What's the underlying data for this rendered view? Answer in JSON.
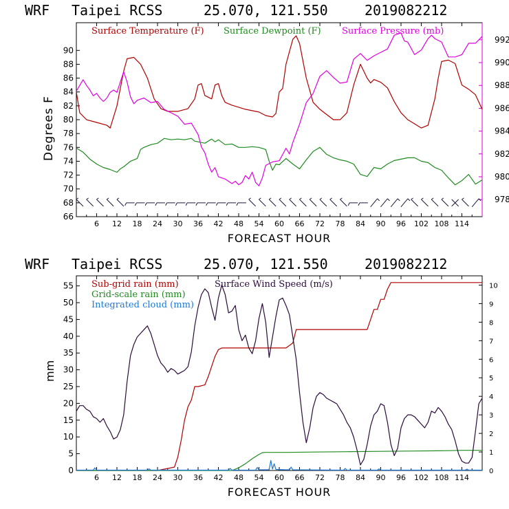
{
  "chart_data": [
    {
      "type": "line",
      "header": {
        "model": "WRF",
        "station": "Taipei RCSS",
        "coords": "25.070, 121.550",
        "init": "2019082212"
      },
      "xlabel": "FORECAST HOUR",
      "ylabel": "Degrees F",
      "xlim": [
        0,
        120
      ],
      "xticks": [
        "6",
        "12",
        "18",
        "24",
        "30",
        "36",
        "42",
        "48",
        "54",
        "60",
        "66",
        "72",
        "78",
        "84",
        "90",
        "96",
        "102",
        "108",
        "114"
      ],
      "ylim": [
        66,
        94
      ],
      "yticks": [
        "66",
        "68",
        "70",
        "72",
        "74",
        "76",
        "78",
        "80",
        "82",
        "84",
        "86",
        "88",
        "90"
      ],
      "y2lim": [
        976.5,
        993.5
      ],
      "y2ticks": [
        "978",
        "980",
        "982",
        "984",
        "986",
        "988",
        "990",
        "992"
      ],
      "legend": [
        "Surface Temperature (F)",
        "Surface Dewpoint (F)",
        "Surface Pressure (mb)"
      ],
      "colors": {
        "temperature": "#b00000",
        "dewpoint": "#1e8a1e",
        "pressure": "#e000e0",
        "wind_barbs": "#1a1a3a",
        "axis": "#d000d0"
      },
      "series": [
        {
          "name": "Surface Temperature (F)",
          "axis": "left",
          "x": [
            0,
            1,
            3,
            6,
            9,
            10,
            12,
            14,
            15,
            17,
            19,
            21,
            23,
            25,
            27,
            30,
            33,
            35,
            36,
            37,
            38,
            40,
            41,
            42,
            43,
            44,
            46,
            48,
            50,
            54,
            56,
            58,
            59,
            60,
            61,
            62,
            64,
            65,
            66,
            68,
            70,
            72,
            76,
            78,
            80,
            82,
            84,
            86,
            87,
            88,
            90,
            92,
            94,
            96,
            98,
            100,
            102,
            104,
            106,
            107,
            108,
            110,
            112,
            114,
            116,
            118,
            120
          ],
          "y": [
            84,
            81,
            80,
            79.6,
            79.2,
            78.8,
            82,
            87,
            88.8,
            89,
            88,
            86,
            83,
            81.6,
            81.2,
            81.2,
            81.6,
            83,
            85,
            85.2,
            83.5,
            83,
            85,
            85.2,
            83.5,
            82.5,
            82.1,
            81.8,
            81.5,
            81.1,
            80.6,
            80.4,
            80.9,
            84,
            84.5,
            88,
            91.6,
            92.1,
            91,
            86,
            82.5,
            81.5,
            80,
            80,
            81,
            85,
            88,
            86,
            85.3,
            85.8,
            85.4,
            84.6,
            82.6,
            81,
            80,
            79.4,
            78.8,
            79.2,
            83,
            86,
            88.4,
            88.6,
            88.1,
            85,
            84.4,
            83.6,
            81.5
          ]
        },
        {
          "name": "Surface Dewpoint (F)",
          "axis": "left",
          "x": [
            0,
            2,
            4,
            6,
            8,
            10,
            12,
            13,
            14,
            16,
            18,
            19,
            20,
            22,
            24,
            26,
            28,
            30,
            32,
            34,
            35,
            36,
            38,
            40,
            41,
            42,
            44,
            46,
            48,
            50,
            52,
            54,
            56,
            57,
            58,
            59,
            60,
            62,
            64,
            66,
            68,
            70,
            72,
            74,
            76,
            78,
            80,
            82,
            84,
            86,
            88,
            90,
            92,
            94,
            96,
            98,
            100,
            102,
            104,
            106,
            108,
            110,
            112,
            114,
            116,
            118,
            120
          ],
          "y": [
            75.9,
            75.3,
            74.3,
            73.6,
            73.1,
            72.8,
            72.4,
            72.9,
            73.2,
            74,
            74.4,
            75.7,
            76,
            76.4,
            76.6,
            77.3,
            77.1,
            77.2,
            77.1,
            77.3,
            76.9,
            76.8,
            76.6,
            77.2,
            76.8,
            77.1,
            76.4,
            76.5,
            76,
            76,
            76.1,
            76,
            75.7,
            74,
            72.7,
            73.6,
            73.5,
            74.4,
            73.6,
            72.9,
            74.2,
            75.4,
            76,
            75,
            74.5,
            74.2,
            74,
            73.6,
            72.1,
            71.8,
            73.1,
            72.9,
            73.6,
            74.1,
            74.3,
            74.5,
            74.5,
            74,
            73.8,
            73.1,
            72.7,
            71.6,
            70.6,
            71.2,
            72.1,
            70.7,
            71.3
          ]
        },
        {
          "name": "Surface Pressure (mb)",
          "axis": "right",
          "x": [
            0,
            1,
            2,
            3,
            4,
            5,
            6,
            7,
            8,
            9,
            10,
            11,
            12,
            13,
            14,
            15,
            16,
            17,
            18,
            20,
            22,
            24,
            26,
            28,
            30,
            32,
            34,
            36,
            37,
            38,
            39,
            40,
            41,
            42,
            44,
            46,
            47,
            48,
            49,
            50,
            51,
            52,
            53,
            54,
            55,
            56,
            58,
            60,
            62,
            63,
            64,
            66,
            68,
            70,
            72,
            74,
            76,
            78,
            80,
            82,
            84,
            86,
            88,
            90,
            92,
            94,
            96,
            97,
            98,
            100,
            102,
            104,
            105,
            106,
            108,
            110,
            112,
            114,
            116,
            118,
            120
          ],
          "y": [
            987.5,
            988,
            988.5,
            988,
            987.6,
            987.1,
            987.3,
            986.9,
            986.6,
            986.9,
            987.4,
            987.6,
            987.4,
            988.3,
            989.2,
            988.3,
            987,
            986.4,
            986.7,
            986.9,
            986.5,
            986.6,
            985.9,
            985.6,
            985.3,
            984.6,
            984.7,
            983.7,
            982.6,
            982.1,
            981.1,
            980.4,
            980.8,
            980,
            979.8,
            979.4,
            979.6,
            979.3,
            979.5,
            980.1,
            979.8,
            980.4,
            979.5,
            979.2,
            979.9,
            981,
            981.3,
            981.4,
            982.5,
            982,
            983,
            984.6,
            986.5,
            987.3,
            988.8,
            989.3,
            988.7,
            988.2,
            988.3,
            990.3,
            990.8,
            990.2,
            990.6,
            990.9,
            991.2,
            992.4,
            992.6,
            991.9,
            991.8,
            990.7,
            991.1,
            992.1,
            992.4,
            992.1,
            991.8,
            990.5,
            990.5,
            990.7,
            991.7,
            991.7,
            992.3
          ]
        }
      ],
      "wind_barbs": {
        "x": [
          1,
          4,
          7,
          10,
          13,
          16,
          19,
          22,
          25,
          28,
          31,
          34,
          37,
          40,
          43,
          46,
          49,
          52,
          55,
          58,
          61,
          64,
          67,
          70,
          73,
          76,
          79,
          82,
          85,
          88,
          91,
          94,
          97,
          100,
          103,
          106,
          109,
          112,
          115,
          118
        ],
        "orientation": [
          "s",
          "s",
          "s",
          "s",
          "s",
          "h",
          "h",
          "h",
          "h",
          "h",
          "h",
          "h",
          "h",
          "h",
          "h",
          "h",
          "h",
          "s",
          "s",
          "s",
          "s",
          "s",
          "s",
          "s",
          "s",
          "s",
          "s",
          "h",
          "h",
          "n",
          "n",
          "n",
          "n",
          "s",
          "s",
          "s",
          "s",
          "x",
          "s",
          "n"
        ]
      }
    },
    {
      "type": "line",
      "header": {
        "model": "WRF",
        "station": "Taipei RCSS",
        "coords": "25.070, 121.550",
        "init": "2019082212"
      },
      "xlabel": "FORECAST HOUR",
      "ylabel": "mm",
      "xlim": [
        0,
        120
      ],
      "xticks": [
        "6",
        "12",
        "18",
        "24",
        "30",
        "36",
        "42",
        "48",
        "54",
        "60",
        "66",
        "72",
        "78",
        "84",
        "90",
        "96",
        "102",
        "108",
        "114"
      ],
      "ylim": [
        0,
        58
      ],
      "yticks": [
        "0",
        "5",
        "10",
        "15",
        "20",
        "25",
        "30",
        "35",
        "40",
        "45",
        "50",
        "55"
      ],
      "y2lim": [
        0,
        10.5
      ],
      "y2ticks": [
        "0",
        "1",
        "2",
        "3",
        "4",
        "5",
        "6",
        "7",
        "8",
        "9",
        "10"
      ],
      "legend": [
        "Sub-grid rain (mm)",
        "Grid-scale rain (mm)",
        "Integrated cloud (mm)",
        "Surface Wind Speed (m/s)"
      ],
      "colors": {
        "subgrid": "#b00000",
        "gridscale": "#1e8a1e",
        "cloud": "#1e78d8",
        "wind": "#2a0a3a"
      },
      "series": [
        {
          "name": "Sub-grid rain (mm)",
          "axis": "left",
          "x": [
            0,
            24,
            29,
            30,
            31,
            32,
            33,
            34,
            35,
            36,
            38,
            39,
            40,
            41,
            42,
            43,
            62,
            64,
            65,
            66,
            86,
            87,
            88,
            89,
            90,
            91,
            92,
            93,
            120
          ],
          "y": [
            0,
            0,
            1,
            4,
            9,
            15,
            19,
            21,
            25,
            25,
            25.5,
            28,
            31,
            34,
            36,
            36.5,
            36.5,
            38,
            42,
            42,
            42,
            45,
            48,
            48,
            51,
            51,
            54,
            56,
            56
          ]
        },
        {
          "name": "Grid-scale rain (mm)",
          "axis": "left",
          "x": [
            0,
            46,
            48,
            50,
            52,
            54,
            55,
            56,
            58,
            62,
            70,
            80,
            90,
            100,
            110,
            114,
            120
          ],
          "y": [
            0,
            0,
            0.8,
            2,
            3.5,
            4.8,
            5.3,
            5.4,
            5.4,
            5.4,
            5.5,
            5.6,
            5.7,
            5.8,
            5.9,
            6,
            6
          ]
        },
        {
          "name": "Integrated cloud (mm)",
          "axis": "left",
          "x": [
            0,
            5,
            5.5,
            6,
            20,
            21,
            21.5,
            22,
            44,
            45,
            45.5,
            46,
            52,
            53,
            53.5,
            54,
            57,
            57.5,
            58,
            58.5,
            59,
            62,
            63,
            63.5,
            64,
            78,
            79,
            79.5,
            80,
            88,
            89,
            89.5,
            90,
            114,
            115,
            115.5,
            116,
            120
          ],
          "y": [
            0.1,
            0.1,
            0.8,
            0.1,
            0.1,
            0.1,
            0.5,
            0.1,
            0.1,
            0.1,
            0.6,
            0.1,
            0.1,
            0.1,
            0.9,
            0.2,
            0.2,
            3,
            0.4,
            2,
            0.3,
            0.2,
            0.2,
            1,
            0.2,
            0.1,
            0.1,
            0.6,
            0.1,
            0.1,
            0.1,
            0.5,
            0.1,
            0.1,
            0.1,
            0.4,
            0.1,
            0.1
          ]
        },
        {
          "name": "Surface Wind Speed (m/s)",
          "axis": "right",
          "x": [
            0,
            1,
            2,
            3,
            4,
            5,
            6,
            7,
            8,
            9,
            10,
            11,
            12,
            13,
            14,
            15,
            16,
            17,
            18,
            19,
            20,
            21,
            22,
            23,
            24,
            25,
            26,
            27,
            28,
            29,
            30,
            31,
            32,
            33,
            34,
            35,
            36,
            37,
            38,
            39,
            40,
            41,
            42,
            43,
            44,
            45,
            46,
            47,
            48,
            49,
            50,
            51,
            52,
            53,
            54,
            55,
            56,
            57,
            58,
            59,
            60,
            61,
            62,
            63,
            64,
            65,
            66,
            67,
            68,
            69,
            70,
            71,
            72,
            73,
            74,
            75,
            76,
            77,
            78,
            79,
            80,
            81,
            82,
            83,
            84,
            85,
            86,
            87,
            88,
            89,
            90,
            91,
            92,
            93,
            94,
            95,
            96,
            97,
            98,
            99,
            100,
            101,
            102,
            103,
            104,
            105,
            106,
            107,
            108,
            109,
            110,
            111,
            112,
            113,
            114,
            115,
            116,
            117,
            118,
            119,
            120
          ],
          "y": [
            3.2,
            3.5,
            3.5,
            3.3,
            3.2,
            2.9,
            2.8,
            2.6,
            2.8,
            2.4,
            2.1,
            1.7,
            1.8,
            2.2,
            3,
            4.8,
            6.2,
            6.8,
            7.2,
            7.4,
            7.6,
            7.8,
            7.4,
            6.8,
            6.2,
            5.8,
            5.6,
            5.3,
            5.5,
            5.4,
            5.2,
            5.3,
            5.4,
            5.6,
            6.4,
            7.8,
            8.8,
            9.5,
            9.8,
            9.6,
            8.8,
            8.1,
            9.3,
            10,
            9.5,
            8.5,
            8.6,
            8.9,
            7.6,
            7,
            7.3,
            6.6,
            6.3,
            7,
            8.2,
            9,
            8,
            6.1,
            7.2,
            8.3,
            9.2,
            9.3,
            8.9,
            8.4,
            7.2,
            6,
            4.2,
            2.6,
            1.5,
            2.3,
            3.4,
            4,
            4.2,
            4.1,
            3.9,
            3.8,
            3.7,
            3.6,
            3.3,
            3,
            2.6,
            2.3,
            1.8,
            1.1,
            0.3,
            0.6,
            1.4,
            2.4,
            3,
            3.2,
            3.6,
            3.5,
            2.6,
            1.4,
            0.8,
            1.2,
            2.3,
            2.8,
            3,
            3,
            2.9,
            2.7,
            2.5,
            2.3,
            2.6,
            3.2,
            3.1,
            3.4,
            3.2,
            2.9,
            2.5,
            2.2,
            1.6,
            0.9,
            0.5,
            0.4,
            0.4,
            0.7,
            2.1,
            3.6,
            3.9
          ]
        }
      ]
    }
  ]
}
